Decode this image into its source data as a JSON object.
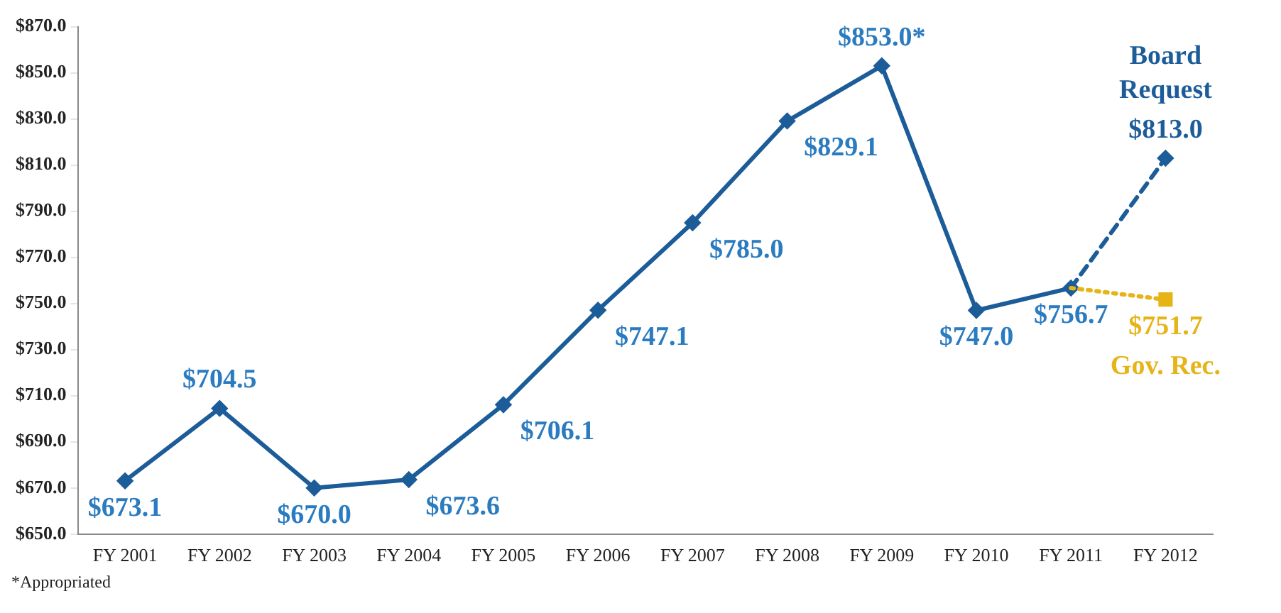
{
  "chart_data": {
    "type": "line",
    "categories": [
      "FY 2001",
      "FY 2002",
      "FY 2003",
      "FY 2004",
      "FY 2005",
      "FY 2006",
      "FY 2007",
      "FY 2008",
      "FY 2009",
      "FY 2010",
      "FY 2011",
      "FY 2012"
    ],
    "series": [
      {
        "color": "#1c5d99",
        "marker": "diamond",
        "line_style": "solid",
        "values": [
          673.1,
          704.5,
          670.0,
          673.6,
          706.1,
          747.1,
          785.0,
          829.1,
          853.0,
          747.0,
          756.7,
          null
        ],
        "value_labels": [
          "$673.1",
          "$704.5",
          "$670.0",
          "$673.6",
          "$706.1",
          "$747.1",
          "$785.0",
          "$829.1",
          "$853.0*",
          "$747.0",
          "$756.7",
          null
        ]
      },
      {
        "name": "Board Request",
        "color": "#1c5d99",
        "marker": "diamond",
        "line_style": "dashed",
        "values": [
          null,
          null,
          null,
          null,
          null,
          null,
          null,
          null,
          null,
          null,
          756.7,
          813.0
        ],
        "value_labels": [
          null,
          null,
          null,
          null,
          null,
          null,
          null,
          null,
          null,
          null,
          null,
          "$813.0"
        ]
      },
      {
        "name": "Gov. Rec.",
        "color": "#e6b417",
        "marker": "square",
        "line_style": "dotted",
        "values": [
          null,
          null,
          null,
          null,
          null,
          null,
          null,
          null,
          null,
          null,
          756.7,
          751.7
        ],
        "value_labels": [
          null,
          null,
          null,
          null,
          null,
          null,
          null,
          null,
          null,
          null,
          null,
          "$751.7"
        ]
      }
    ],
    "ylim": [
      650,
      870
    ],
    "yticks": [
      {
        "value": 650,
        "label": "$650.0"
      },
      {
        "value": 670,
        "label": "$670.0"
      },
      {
        "value": 690,
        "label": "$690.0"
      },
      {
        "value": 710,
        "label": "$710.0"
      },
      {
        "value": 730,
        "label": "$730.0"
      },
      {
        "value": 750,
        "label": "$750.0"
      },
      {
        "value": 770,
        "label": "$770.0"
      },
      {
        "value": 790,
        "label": "$790.0"
      },
      {
        "value": 810,
        "label": "$810.0"
      },
      {
        "value": 830,
        "label": "$830.0"
      },
      {
        "value": 850,
        "label": "$850.0"
      },
      {
        "value": 870,
        "label": "$870.0"
      }
    ],
    "grid": false,
    "legend": false,
    "annotations": [
      "*Appropriated"
    ]
  }
}
